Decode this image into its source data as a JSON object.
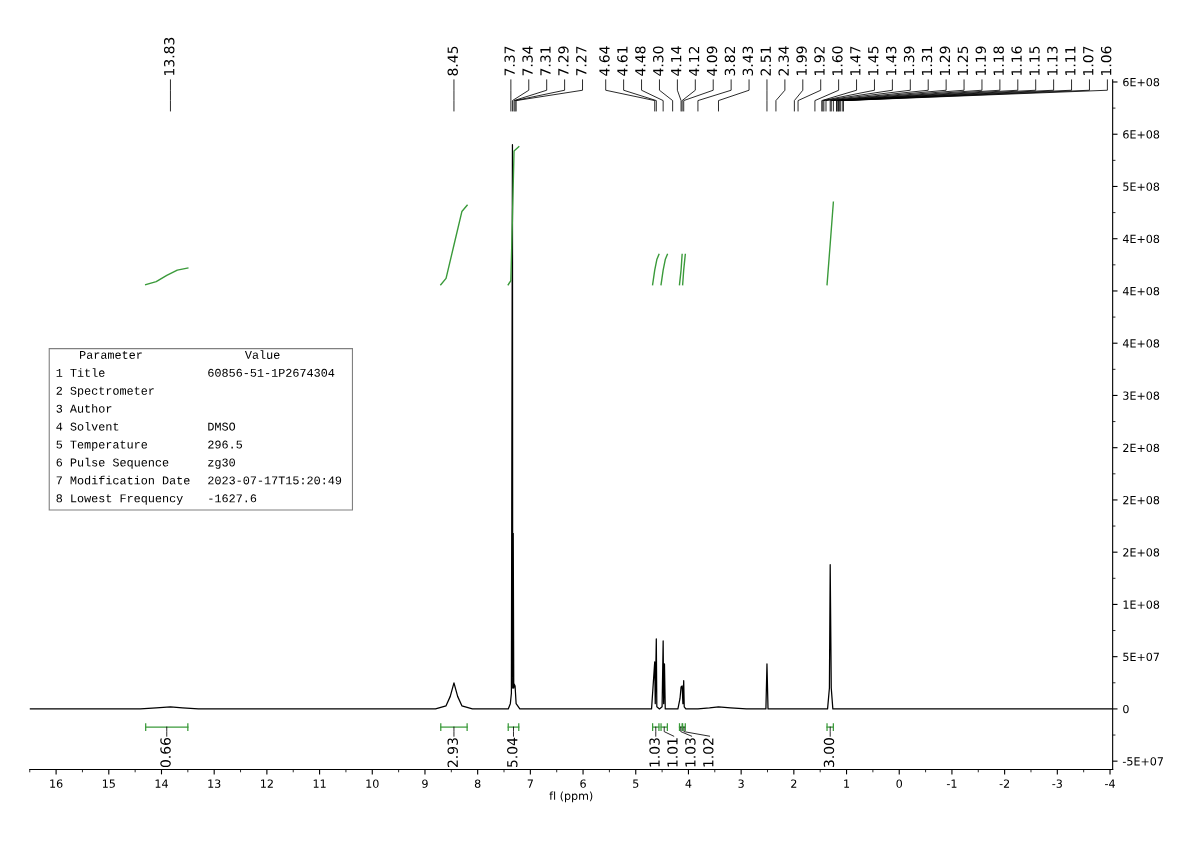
{
  "chart_data": {
    "type": "line",
    "xlabel": "fl (ppm)",
    "xlim": [
      16.5,
      -4.05
    ],
    "xticks": [
      16,
      15,
      14,
      13,
      12,
      11,
      10,
      9,
      8,
      7,
      6,
      5,
      4,
      3,
      2,
      1,
      0,
      -1,
      -2,
      -3,
      -4
    ],
    "ylim": [
      -58000000,
      602000000
    ],
    "yticks": [
      {
        "value": -50000000,
        "label": "-5E+07"
      },
      0,
      {
        "value": 50000000,
        "label": "5E+07"
      },
      {
        "value": 100000000,
        "label": "1E+08"
      },
      {
        "value": 150000000,
        "label": "2E+08"
      },
      {
        "value": 200000000,
        "label": "2E+08"
      },
      {
        "value": 250000000,
        "label": "2E+08"
      },
      {
        "value": 300000000,
        "label": "3E+08"
      },
      {
        "value": 350000000,
        "label": "4E+08"
      },
      {
        "value": 400000000,
        "label": "4E+08"
      },
      {
        "value": 450000000,
        "label": "4E+08"
      },
      {
        "value": 500000000,
        "label": "5E+08"
      },
      {
        "value": 550000000,
        "label": "6E+08"
      },
      {
        "value": 600000000,
        "label": "6E+08"
      }
    ],
    "grid": false,
    "legend": false,
    "marker": "none",
    "line_style": "solid",
    "series": [
      {
        "color": "#000000",
        "x": [
          16.5,
          14.4,
          14.1,
          13.83,
          13.6,
          13.3,
          8.8,
          8.6,
          8.52,
          8.45,
          8.38,
          8.3,
          8.1,
          7.42,
          7.38,
          7.37,
          7.36,
          7.34,
          7.335,
          7.325,
          7.315,
          7.31,
          7.29,
          7.27,
          7.2,
          4.7,
          4.64,
          4.63,
          4.61,
          4.6,
          4.55,
          4.5,
          4.48,
          4.47,
          4.455,
          4.44,
          4.3,
          4.2,
          4.16,
          4.14,
          4.12,
          4.105,
          4.09,
          4.08,
          4.05,
          3.82,
          3.6,
          3.43,
          3.2,
          2.9,
          2.53,
          2.51,
          2.49,
          2.34,
          1.99,
          1.92,
          1.6,
          1.47,
          1.45,
          1.43,
          1.39,
          1.36,
          1.325,
          1.31,
          1.29,
          1.26,
          1.25,
          1.19,
          1.18,
          1.16,
          1.15,
          1.13,
          1.11,
          1.07,
          1.06,
          -4.05
        ],
        "values": [
          0,
          0,
          1000000,
          2000000,
          1000000,
          0,
          0,
          3000000,
          12000000,
          25000000,
          12000000,
          3000000,
          0,
          0,
          5000000,
          10000000,
          15000000,
          540000000,
          20000000,
          168000000,
          20000000,
          24000000,
          22000000,
          5000000,
          0,
          0,
          45000000,
          5000000,
          67000000,
          2000000,
          0,
          2000000,
          65000000,
          5000000,
          43000000,
          0,
          0,
          0,
          10000000,
          21000000,
          22000000,
          5000000,
          27000000,
          2000000,
          0,
          0,
          1000000,
          2000000,
          1000000,
          0,
          0,
          43000000,
          0,
          0,
          0,
          0,
          0,
          0,
          0,
          0,
          0,
          0,
          20000000,
          138000000,
          20000000,
          0,
          0,
          0,
          0,
          0,
          0,
          0,
          0,
          0,
          0,
          0
        ]
      },
      {
        "color": "#3a9a3a",
        "x": [
          14.3,
          14.1,
          13.9,
          13.7,
          13.5
        ],
        "values": [
          406000000,
          409000000,
          415000000,
          420000000,
          422000000
        ]
      },
      {
        "color": "#3a9a3a",
        "x": [
          8.7,
          8.6,
          8.45,
          8.3,
          8.2
        ],
        "values": [
          406000000,
          412000000,
          444000000,
          476000000,
          482000000
        ]
      },
      {
        "color": "#3a9a3a",
        "x": [
          7.42,
          7.37,
          7.34,
          7.31,
          7.22
        ],
        "values": [
          406000000,
          410000000,
          470000000,
          534000000,
          538000000
        ]
      },
      {
        "color": "#3a9a3a",
        "x": [
          4.68,
          4.64,
          4.6,
          4.56
        ],
        "values": [
          406000000,
          420000000,
          430000000,
          435000000
        ]
      },
      {
        "color": "#3a9a3a",
        "x": [
          4.52,
          4.48,
          4.44,
          4.4
        ],
        "values": [
          406000000,
          420000000,
          430000000,
          435000000
        ]
      },
      {
        "color": "#3a9a3a",
        "x": [
          4.17,
          4.14,
          4.12
        ],
        "values": [
          406000000,
          420000000,
          435000000
        ]
      },
      {
        "color": "#3a9a3a",
        "x": [
          4.11,
          4.09,
          4.06
        ],
        "values": [
          406000000,
          420000000,
          435000000
        ]
      },
      {
        "color": "#3a9a3a",
        "x": [
          1.37,
          1.31,
          1.25
        ],
        "values": [
          406000000,
          445000000,
          485000000
        ]
      }
    ],
    "annotations": [
      "Parameter\tValue",
      "1 Title\t60856-51-1P2674304",
      "2 Spectrometer",
      "3 Author",
      "4 Solvent\tDMSO",
      "5 Temperature\t296.5",
      "6 Pulse Sequence\tzg30",
      "7 Modification Date\t2023-07-17T15:20:49",
      "8 Lowest Frequency\t-1627.6",
      "13.83",
      "8.45",
      "7.37",
      "7.34",
      "7.31",
      "7.29",
      "7.27",
      "4.64",
      "4.61",
      "4.48",
      "4.30",
      "4.14",
      "4.12",
      "4.09",
      "3.82",
      "3.43",
      "2.51",
      "2.34",
      "1.99",
      "1.92",
      "1.60",
      "1.47",
      "1.45",
      "1.43",
      "1.39",
      "1.31",
      "1.29",
      "1.25",
      "1.19",
      "1.18",
      "1.16",
      "1.15",
      "1.13",
      "1.11",
      "1.07",
      "1.06",
      "0.66",
      "2.93",
      "5.04",
      "1.03",
      "1.01",
      "1.03",
      "1.02",
      "3.00"
    ]
  }
}
